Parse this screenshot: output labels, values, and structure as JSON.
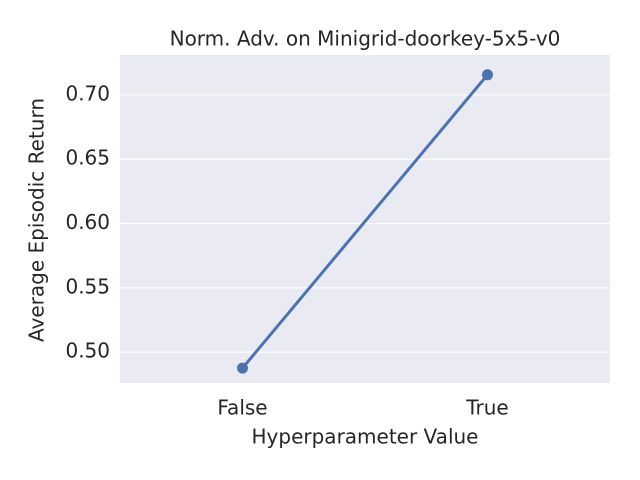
{
  "chart_data": {
    "type": "line",
    "title": "Norm. Adv. on Minigrid-doorkey-5x5-v0",
    "x_label": "Hyperparameter Value",
    "y_label": "Average Episodic Return",
    "categories": [
      "False",
      "True"
    ],
    "series": [
      {
        "name": "Average Episodic Return",
        "color": "#4c72b0",
        "values": [
          0.4876,
          0.7156
        ]
      }
    ],
    "ylim": [
      0.476,
      0.731
    ],
    "yticks": [
      {
        "value": 0.5,
        "label": "0.50"
      },
      {
        "value": 0.55,
        "label": "0.55"
      },
      {
        "value": 0.6,
        "label": "0.60"
      },
      {
        "value": 0.65,
        "label": "0.65"
      },
      {
        "value": 0.7,
        "label": "0.70"
      }
    ],
    "grid": true
  }
}
